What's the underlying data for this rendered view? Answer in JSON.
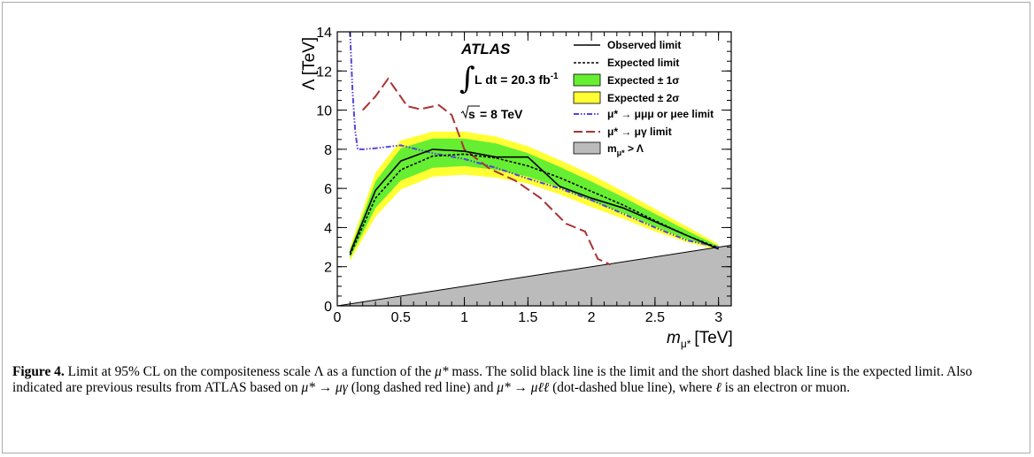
{
  "chart_data": {
    "type": "line",
    "experiment": "ATLAS",
    "luminosity_text": "L dt = 20.3 fb",
    "luminosity_superscript": "-1",
    "energy_text": "= 8 TeV",
    "xlabel": "m",
    "xlabel_sub": "μ*",
    "xlabel_unit": "[TeV]",
    "ylabel": "Λ [TeV]",
    "xlim": [
      0,
      3.1
    ],
    "ylim": [
      0,
      14
    ],
    "x_ticks": [
      "0",
      "0.5",
      "1",
      "1.5",
      "2",
      "2.5",
      "3"
    ],
    "y_ticks": [
      "0",
      "2",
      "4",
      "6",
      "8",
      "10",
      "12",
      "14"
    ],
    "legend": {
      "observed": "Observed limit",
      "expected": "Expected limit",
      "band1": "Expected ± 1σ",
      "band2": "Expected ± 2σ",
      "prev3l": "μ* → μμμ or μee limit",
      "prevgamma": "μ* → μγ limit",
      "excluded": "m",
      "excluded_sub": "μ*",
      "excluded_tail": " > Λ"
    },
    "colors": {
      "band1": "#66ee33",
      "band2": "#ffff33",
      "prev3l": "#5544dd",
      "prevgamma": "#aa3333",
      "excluded": "#bbbbbb"
    },
    "x": [
      0.1,
      0.3,
      0.5,
      0.75,
      1.0,
      1.25,
      1.5,
      1.75,
      2.0,
      2.25,
      2.5,
      2.75,
      3.0
    ],
    "observed": [
      2.7,
      5.9,
      7.4,
      8.0,
      7.9,
      7.6,
      7.6,
      6.1,
      5.5,
      5.0,
      4.3,
      3.6,
      2.9
    ],
    "expected": [
      2.6,
      5.5,
      6.95,
      7.65,
      7.75,
      7.55,
      7.15,
      6.55,
      5.85,
      5.15,
      4.35,
      3.6,
      2.95
    ],
    "band1_upper": [
      2.85,
      6.35,
      8.05,
      8.55,
      8.55,
      8.3,
      7.8,
      7.1,
      6.35,
      5.55,
      4.7,
      3.85,
      3.05
    ],
    "band1_lower": [
      2.45,
      5.0,
      6.4,
      7.05,
      7.15,
      6.95,
      6.6,
      6.05,
      5.35,
      4.75,
      4.05,
      3.4,
      2.9
    ],
    "band2_upper": [
      3.0,
      6.8,
      8.45,
      8.9,
      8.9,
      8.65,
      8.15,
      7.45,
      6.7,
      5.85,
      4.95,
      4.05,
      3.15
    ],
    "band2_lower": [
      2.3,
      4.55,
      5.95,
      6.6,
      6.7,
      6.55,
      6.25,
      5.7,
      5.05,
      4.45,
      3.8,
      3.25,
      2.85
    ],
    "prev3l_x": [
      0.1,
      0.12,
      0.14,
      0.16,
      0.2,
      0.3,
      0.5,
      0.75,
      1.0,
      1.25,
      1.5,
      1.75,
      2.0,
      2.25,
      2.5,
      2.75,
      3.0
    ],
    "prev3l": [
      14.0,
      11.0,
      9.0,
      8.0,
      8.0,
      8.05,
      8.2,
      7.8,
      7.5,
      7.05,
      6.5,
      6.0,
      5.4,
      4.7,
      4.0,
      3.35,
      3.0
    ],
    "prevgamma_x": [
      0.2,
      0.3,
      0.4,
      0.55,
      0.65,
      0.8,
      0.9,
      1.0,
      1.2,
      1.4,
      1.6,
      1.8,
      1.95,
      2.05,
      2.15
    ],
    "prevgamma": [
      10.0,
      10.7,
      11.6,
      10.2,
      10.05,
      10.25,
      9.75,
      8.0,
      7.0,
      6.4,
      5.5,
      4.2,
      3.8,
      2.4,
      2.1
    ],
    "excluded_x": [
      0.0,
      3.1
    ],
    "excluded_y": [
      0.0,
      3.1
    ]
  },
  "caption": {
    "label": "Figure 4.",
    "text1": " Limit at 95% CL on the compositeness scale Λ as a function of the ",
    "mu_star": "μ*",
    "text2": " mass. The solid black line is the limit and the short dashed black line is the expected limit. Also indicated are previous results from ATLAS based on ",
    "mu_to_mugamma": "μ* → μγ",
    "text3": " (long dashed red line) and ",
    "mu_to_mull": "μ* → μℓℓ",
    "text4": " (dot-dashed blue line), where ",
    "ell": "ℓ",
    "text5": " is an electron or muon."
  }
}
